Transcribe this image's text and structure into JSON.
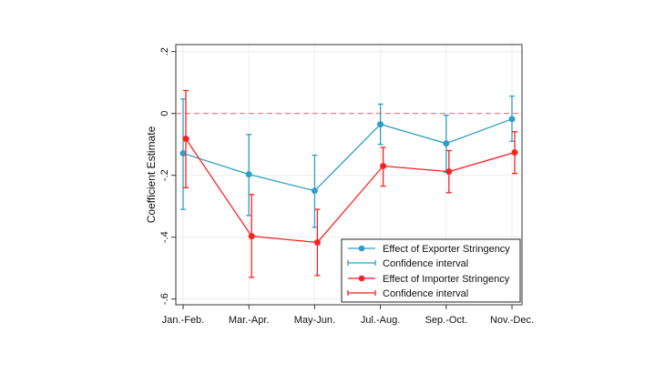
{
  "chart_data": {
    "type": "line",
    "title": "",
    "xlabel": "",
    "ylabel": "Coefficient Estimate",
    "ylim": [
      -0.6,
      0.2
    ],
    "yticks": [
      -0.6,
      -0.4,
      -0.2,
      0,
      0.2
    ],
    "ytick_labels": [
      "-.6",
      "-.4",
      "-.2",
      "0",
      ".2"
    ],
    "categories": [
      "Jan.-Feb.",
      "Mar.-Apr.",
      "May-Jun.",
      "Jul.-Aug.",
      "Sep.-Oct.",
      "Nov.-Dec."
    ],
    "reference_line": {
      "y": 0,
      "style": "dashed",
      "color": "#e8738a"
    },
    "grid": true,
    "legend_placement": "bottom-right",
    "series": [
      {
        "name": "Effect of Exporter Stringency",
        "ci_name": "Confidence interval",
        "color": "#2e9ec7",
        "values": [
          -0.129,
          -0.197,
          -0.25,
          -0.035,
          -0.097,
          -0.018
        ],
        "ci_lower": [
          -0.31,
          -0.33,
          -0.368,
          -0.1,
          -0.19,
          -0.09
        ],
        "ci_upper": [
          0.047,
          -0.068,
          -0.135,
          0.03,
          -0.006,
          0.056
        ]
      },
      {
        "name": "Effect of Importer Stringency",
        "ci_name": "Confidence interval",
        "color": "#ff1f1f",
        "values": [
          -0.082,
          -0.397,
          -0.417,
          -0.17,
          -0.188,
          -0.126
        ],
        "ci_lower": [
          -0.24,
          -0.53,
          -0.524,
          -0.235,
          -0.256,
          -0.194
        ],
        "ci_upper": [
          0.074,
          -0.262,
          -0.31,
          -0.11,
          -0.12,
          -0.059
        ]
      }
    ]
  }
}
